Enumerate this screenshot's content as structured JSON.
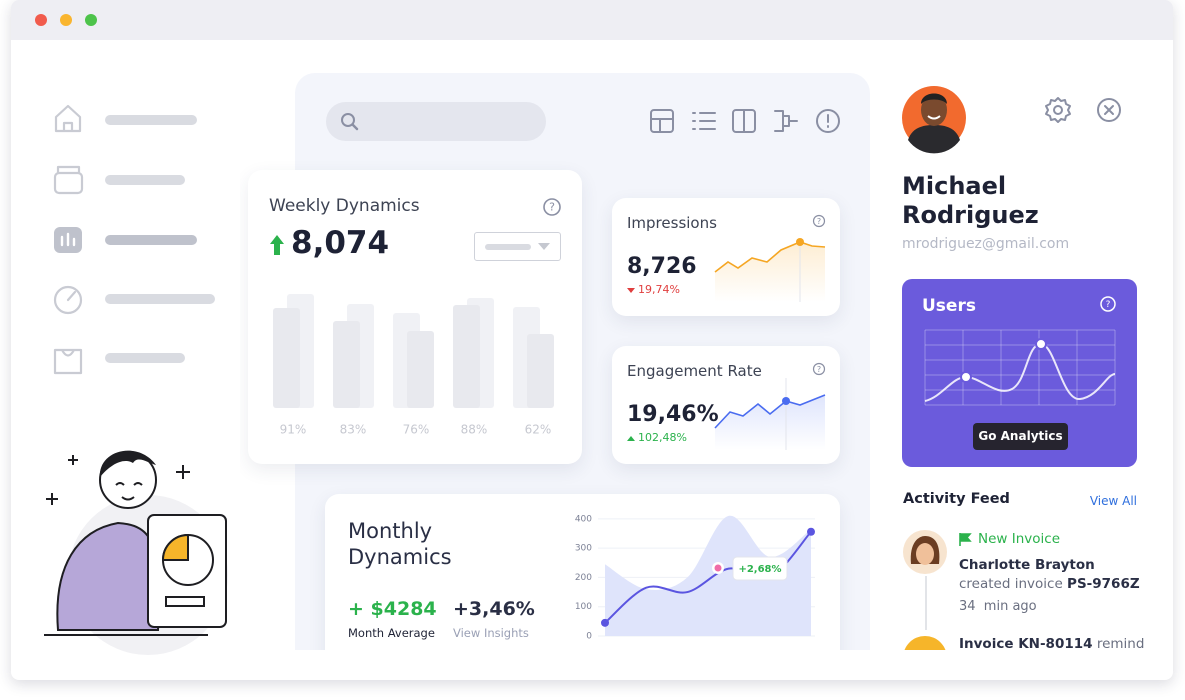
{
  "weekly": {
    "title": "Weekly Dynamics",
    "value": "8,074",
    "bar_labels": [
      "91%",
      "83%",
      "76%",
      "88%",
      "62%"
    ]
  },
  "impressions": {
    "title": "Impressions",
    "value": "8,726",
    "change": "19,74%"
  },
  "engagement": {
    "title": "Engagement Rate",
    "value": "19,46%",
    "change": "102,48%"
  },
  "monthly": {
    "title": "Monthly Dynamics",
    "average_value": "+ $4284",
    "average_label": "Month Average",
    "insights_value": "+3,46%",
    "insights_label": "View Insights",
    "tooltip": "+2,68%",
    "chart": {
      "type": "area",
      "ylim": [
        0,
        420
      ],
      "yticks": [
        0,
        100,
        200,
        300,
        400
      ],
      "grid": true,
      "series": [
        {
          "type": "area",
          "color": "#dfe4fb",
          "values": [
            245,
            160,
            200,
            410,
            270,
            365
          ]
        },
        {
          "type": "line",
          "color": "#5b55e0",
          "values": [
            45,
            165,
            150,
            230,
            200,
            356
          ]
        }
      ]
    }
  },
  "profile": {
    "name": "Michael Rodriguez",
    "email": "mrodriguez@gmail.com"
  },
  "users": {
    "title": "Users",
    "button": "Go Analytics"
  },
  "activity_feed": {
    "title": "Activity Feed",
    "link": "View All",
    "items": [
      {
        "tag": "New Invoice",
        "actor": "Charlotte Brayton",
        "text": "created invoice",
        "ref": "PS-9766Z",
        "time": "34  min ago"
      },
      {
        "actor": "Invoice KN-80114",
        "text": "reminder"
      }
    ]
  }
}
